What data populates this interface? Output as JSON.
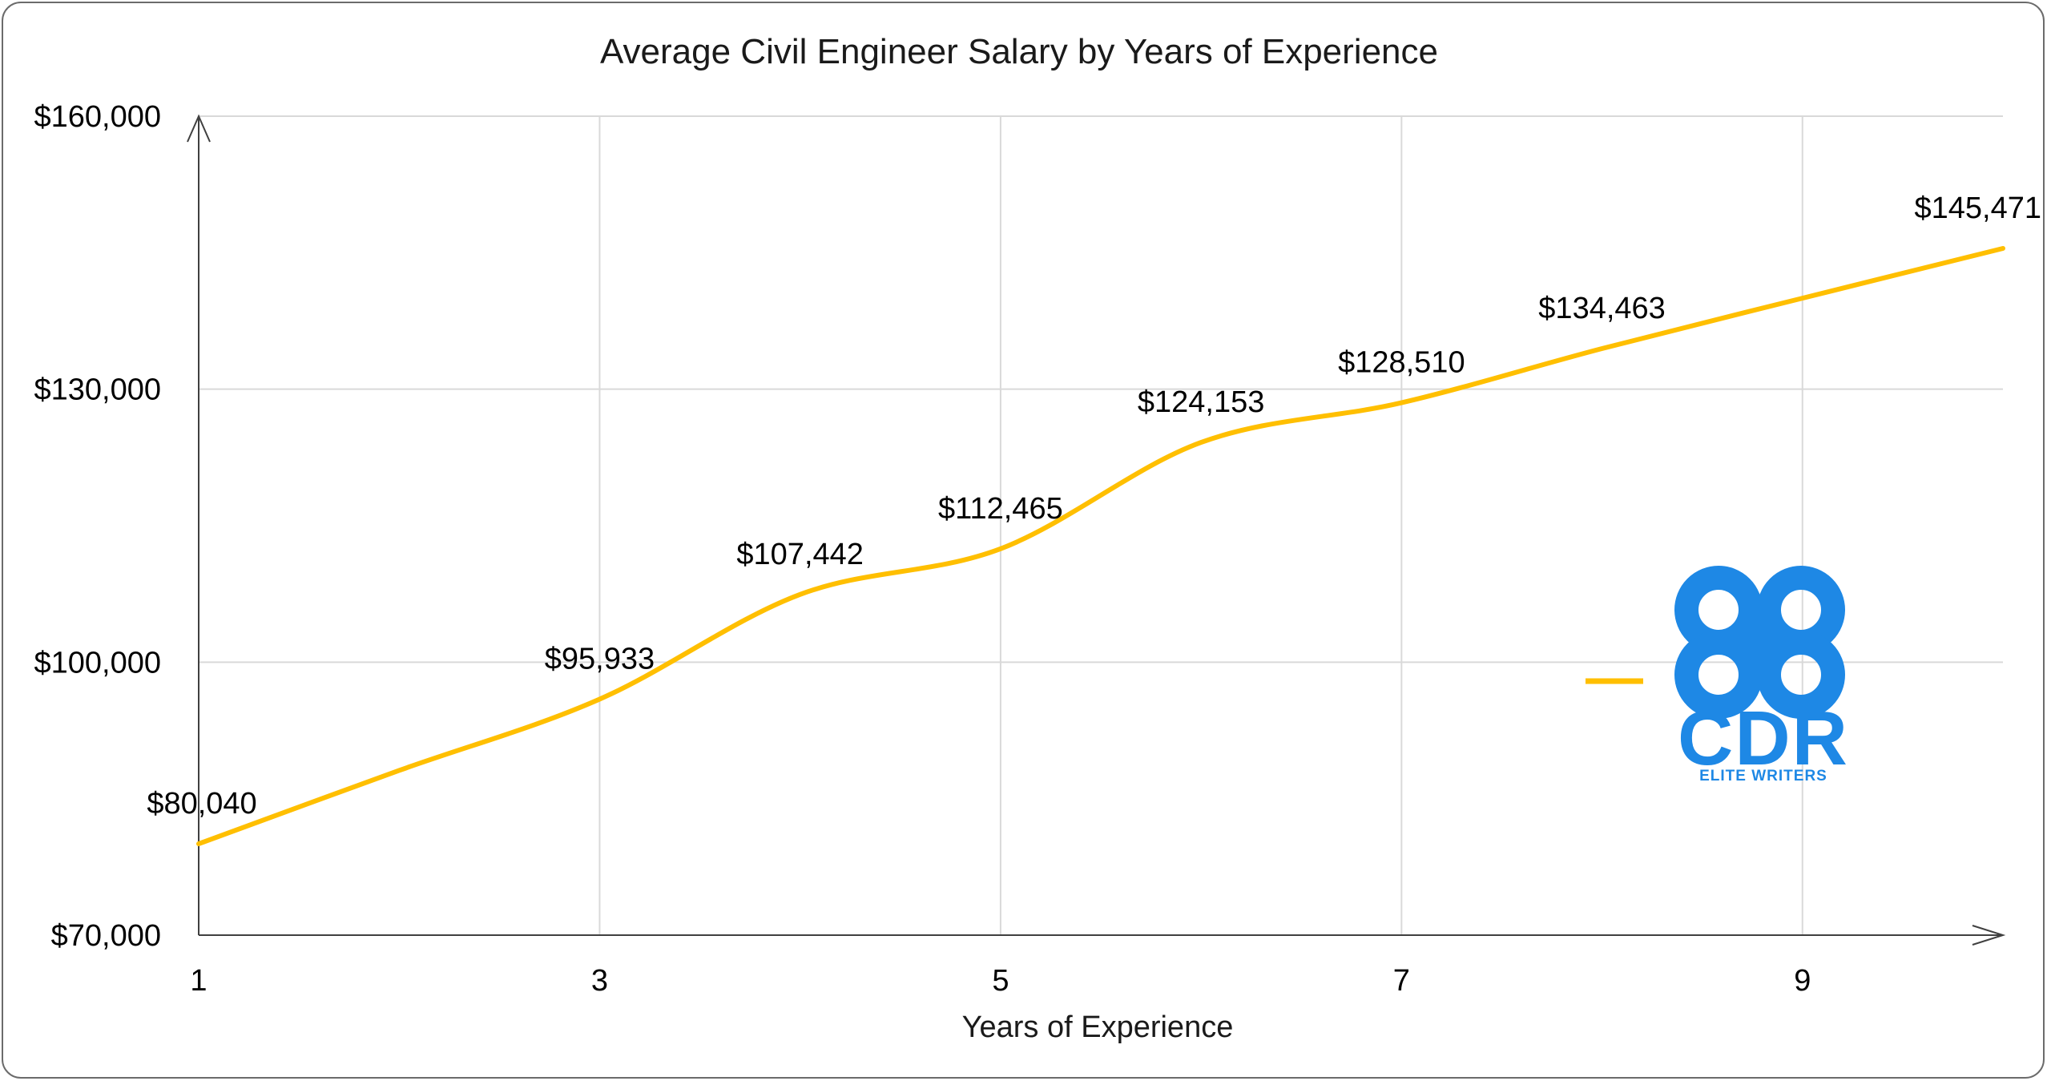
{
  "chart_data": {
    "type": "line",
    "title": "Average Civil Engineer Salary by Years of Experience",
    "xlabel": "Years of Experience",
    "ylabel": "",
    "x": [
      1,
      2,
      3,
      4,
      5,
      6,
      7,
      8,
      9,
      10
    ],
    "x_ticks": [
      "1",
      "3",
      "5",
      "7",
      "9"
    ],
    "x_tick_values": [
      1,
      3,
      5,
      7,
      9
    ],
    "xlim": [
      1,
      10
    ],
    "ylim": [
      70000,
      160000
    ],
    "y_ticks": [
      "$70,000",
      "$100,000",
      "$130,000",
      "$160,000"
    ],
    "y_tick_values": [
      70000,
      100000,
      130000,
      160000
    ],
    "grid": true,
    "smooth": true,
    "series": [
      {
        "values": [
          80040,
          88100,
          95933,
          107442,
          112465,
          124153,
          128510,
          134463,
          140000,
          145471
        ],
        "color": "#FFBF00"
      }
    ],
    "data_labels": [
      {
        "x": 1,
        "y": 80040,
        "text": "$80,040"
      },
      {
        "x": 3,
        "y": 95933,
        "text": "$95,933"
      },
      {
        "x": 4,
        "y": 107442,
        "text": "$107,442"
      },
      {
        "x": 5,
        "y": 112465,
        "text": "$112,465"
      },
      {
        "x": 6,
        "y": 124153,
        "text": "$124,153"
      },
      {
        "x": 7,
        "y": 128510,
        "text": "$128,510"
      },
      {
        "x": 8,
        "y": 134463,
        "text": "$134,463"
      },
      {
        "x": 10,
        "y": 145471,
        "text": "$145,471"
      }
    ]
  },
  "logo": {
    "text": "CDR",
    "subtitle": "ELITE WRITERS",
    "icon": "command-key-icon",
    "color": "#1E88E5"
  },
  "colors": {
    "line": "#FFBF00",
    "grid": "#d9d9d9",
    "axis": "#404040",
    "logo": "#1E88E5"
  }
}
